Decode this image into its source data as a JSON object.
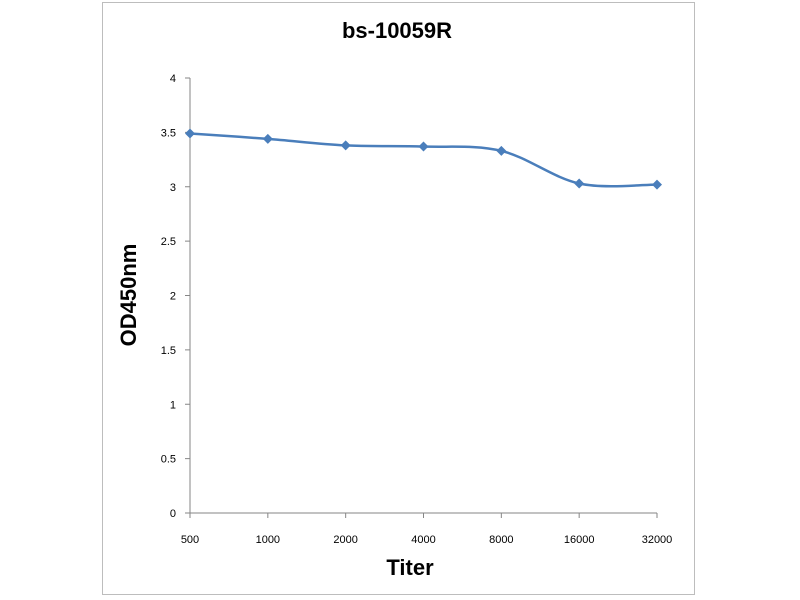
{
  "chart_data": {
    "type": "line",
    "title": "bs-10059R",
    "xlabel": "Titer",
    "ylabel": "OD450nm",
    "categories": [
      "500",
      "1000",
      "2000",
      "4000",
      "8000",
      "16000",
      "32000"
    ],
    "series": [
      {
        "values": [
          3.49,
          3.44,
          3.38,
          3.37,
          3.33,
          3.03,
          3.02
        ]
      }
    ],
    "y_ticks": [
      "0",
      "0.5",
      "1",
      "1.5",
      "2",
      "2.5",
      "3",
      "3.5",
      "4"
    ],
    "ylim": [
      0,
      4
    ],
    "grid": false,
    "legend": "none",
    "series_color": "#4a7ebb",
    "marker": "diamond"
  }
}
